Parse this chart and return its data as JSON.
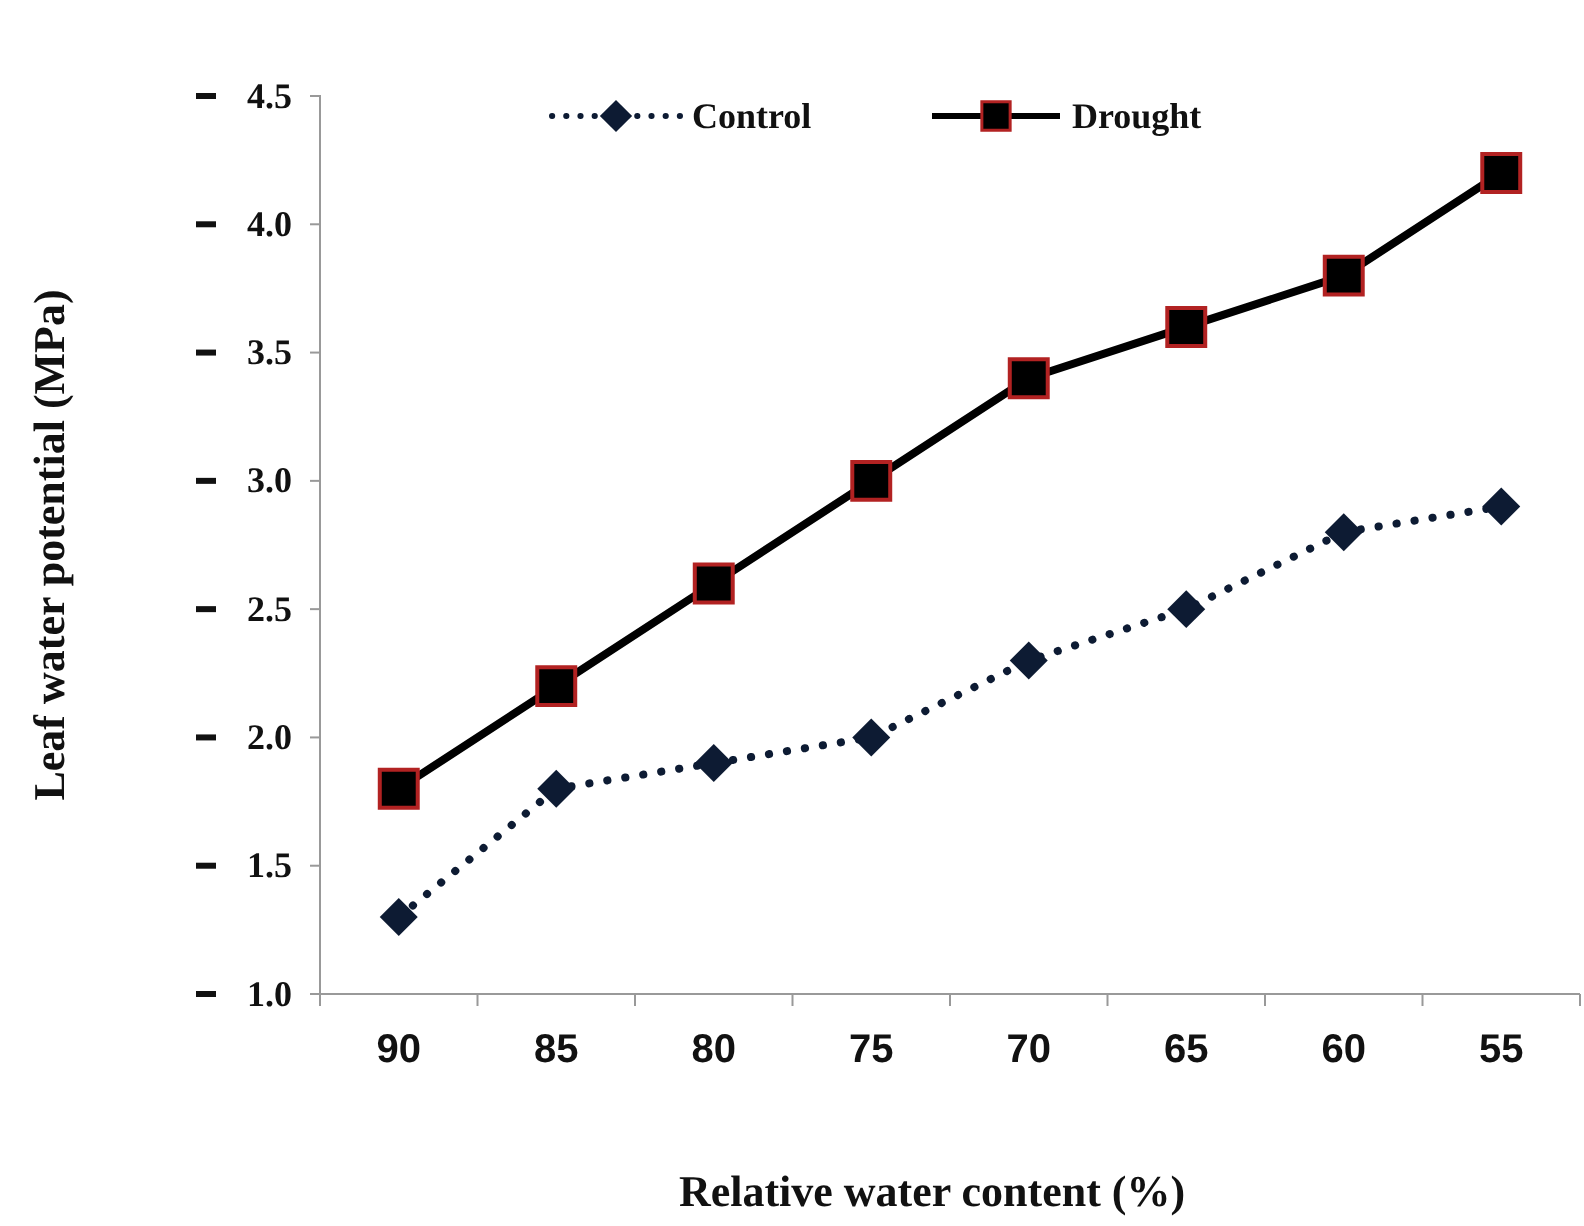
{
  "chart_data": {
    "type": "line",
    "xlabel": "Relative water content (%)",
    "ylabel": "Leaf water potential (MPa)",
    "categories": [
      "90",
      "85",
      "80",
      "75",
      "70",
      "65",
      "60",
      "55"
    ],
    "series": [
      {
        "name": "Control",
        "color": "#0d1b33",
        "marker": "diamond",
        "line_style": "dotted",
        "values": [
          1.3,
          1.8,
          1.9,
          2.0,
          2.3,
          2.5,
          2.8,
          2.9
        ]
      },
      {
        "name": "Drought",
        "color": "#000000",
        "marker": "square",
        "line_style": "solid",
        "values": [
          1.8,
          2.2,
          2.6,
          3.0,
          3.4,
          3.6,
          3.8,
          4.2
        ]
      }
    ],
    "ylim": [
      1.0,
      4.5
    ],
    "yticks": [
      {
        "value": 1.0,
        "label": "1.0"
      },
      {
        "value": 1.5,
        "label": "1.5"
      },
      {
        "value": 2.0,
        "label": "2.0"
      },
      {
        "value": 2.5,
        "label": "2.5"
      },
      {
        "value": 3.0,
        "label": "3.0"
      },
      {
        "value": 3.5,
        "label": "3.5"
      },
      {
        "value": 4.0,
        "label": "4.0"
      },
      {
        "value": 4.5,
        "label": "4.5"
      }
    ],
    "grid": false,
    "legend": "top"
  }
}
